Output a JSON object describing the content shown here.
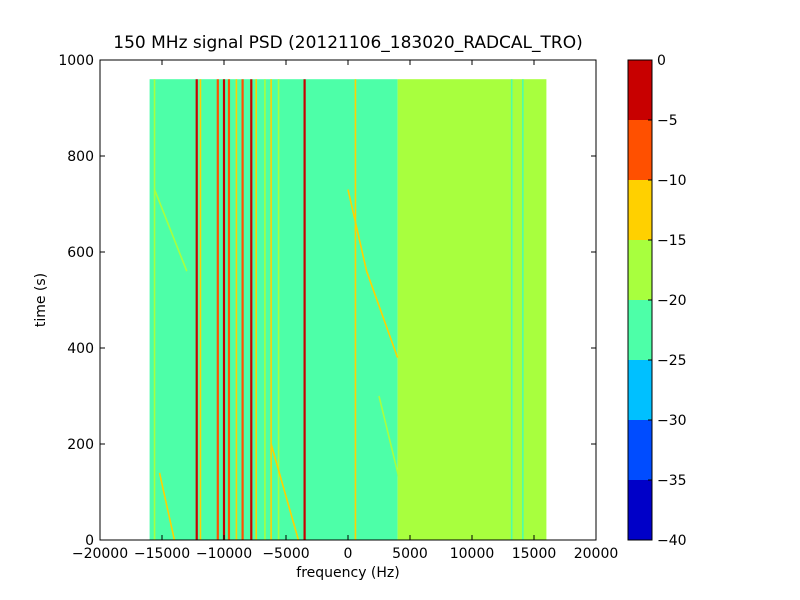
{
  "chart_data": {
    "type": "heatmap",
    "title": "150 MHz signal PSD (20121106_183020_RADCAL_TRO)",
    "xlabel": "frequency (Hz)",
    "ylabel": "time (s)",
    "xlim": [
      -20000,
      20000
    ],
    "ylim": [
      0,
      1000
    ],
    "xticks": [
      -20000,
      -15000,
      -10000,
      -5000,
      0,
      5000,
      10000,
      15000,
      20000
    ],
    "xtick_labels": [
      "−20000",
      "−15000",
      "−10000",
      "−5000",
      "0",
      "5000",
      "10000",
      "15000",
      "20000"
    ],
    "yticks": [
      0,
      200,
      400,
      600,
      800,
      1000
    ],
    "ytick_labels": [
      "0",
      "200",
      "400",
      "600",
      "800",
      "1000"
    ],
    "data_extent": {
      "x": [
        -16000,
        16000
      ],
      "y": [
        0,
        960
      ]
    },
    "colorbar": {
      "range": [
        -40,
        0
      ],
      "levels": [
        -40,
        -35,
        -30,
        -25,
        -20,
        -15,
        -10,
        -5,
        0
      ],
      "tick_labels": [
        "−40",
        "−35",
        "−30",
        "−25",
        "−20",
        "−15",
        "−10",
        "−5",
        "0"
      ],
      "colors": [
        "#0000c8",
        "#004cff",
        "#00c0ff",
        "#4dffa8",
        "#a8ff3e",
        "#ffd000",
        "#ff5000",
        "#c80000"
      ]
    },
    "regions": [
      {
        "x": [
          -16000,
          4000
        ],
        "level": -22.5,
        "note_color": "#4dffa8"
      },
      {
        "x": [
          4000,
          16000
        ],
        "level": -17.5,
        "note_color": "#a8ff3e"
      }
    ],
    "vertical_features": [
      {
        "x": -15600,
        "level": -17.5
      },
      {
        "x": -12200,
        "level": -2.5
      },
      {
        "x": -11900,
        "level": -12.5
      },
      {
        "x": -10500,
        "level": -7.5
      },
      {
        "x": -10000,
        "level": -2.5
      },
      {
        "x": -9600,
        "level": -7.5
      },
      {
        "x": -9000,
        "level": -12.5
      },
      {
        "x": -8500,
        "level": -7.5
      },
      {
        "x": -7800,
        "level": -2.5
      },
      {
        "x": -7400,
        "level": -12.5
      },
      {
        "x": -6700,
        "level": -17.5
      },
      {
        "x": -6200,
        "level": -12.5
      },
      {
        "x": -5600,
        "level": -17.5
      },
      {
        "x": -3500,
        "level": -2.5
      },
      {
        "x": 600,
        "level": -12.5
      },
      {
        "x": 13200,
        "level": -22.5
      },
      {
        "x": 14100,
        "level": -22.5
      }
    ],
    "diagonal_features": [
      {
        "points": [
          [
            -14000,
            0
          ],
          [
            -15200,
            140
          ]
        ],
        "level": -12.5
      },
      {
        "points": [
          [
            -13000,
            560
          ],
          [
            -15600,
            730
          ]
        ],
        "level": -17.5
      },
      {
        "points": [
          [
            -4000,
            0
          ],
          [
            -6200,
            200
          ]
        ],
        "level": -12.5
      },
      {
        "points": [
          [
            0,
            730
          ],
          [
            1500,
            560
          ],
          [
            4000,
            380
          ]
        ],
        "level": -12.5
      },
      {
        "points": [
          [
            2500,
            300
          ],
          [
            4200,
            120
          ]
        ],
        "level": -17.5
      },
      {
        "points": [
          [
            15800,
            170
          ],
          [
            14300,
            0
          ]
        ],
        "level": -17.5
      }
    ]
  }
}
